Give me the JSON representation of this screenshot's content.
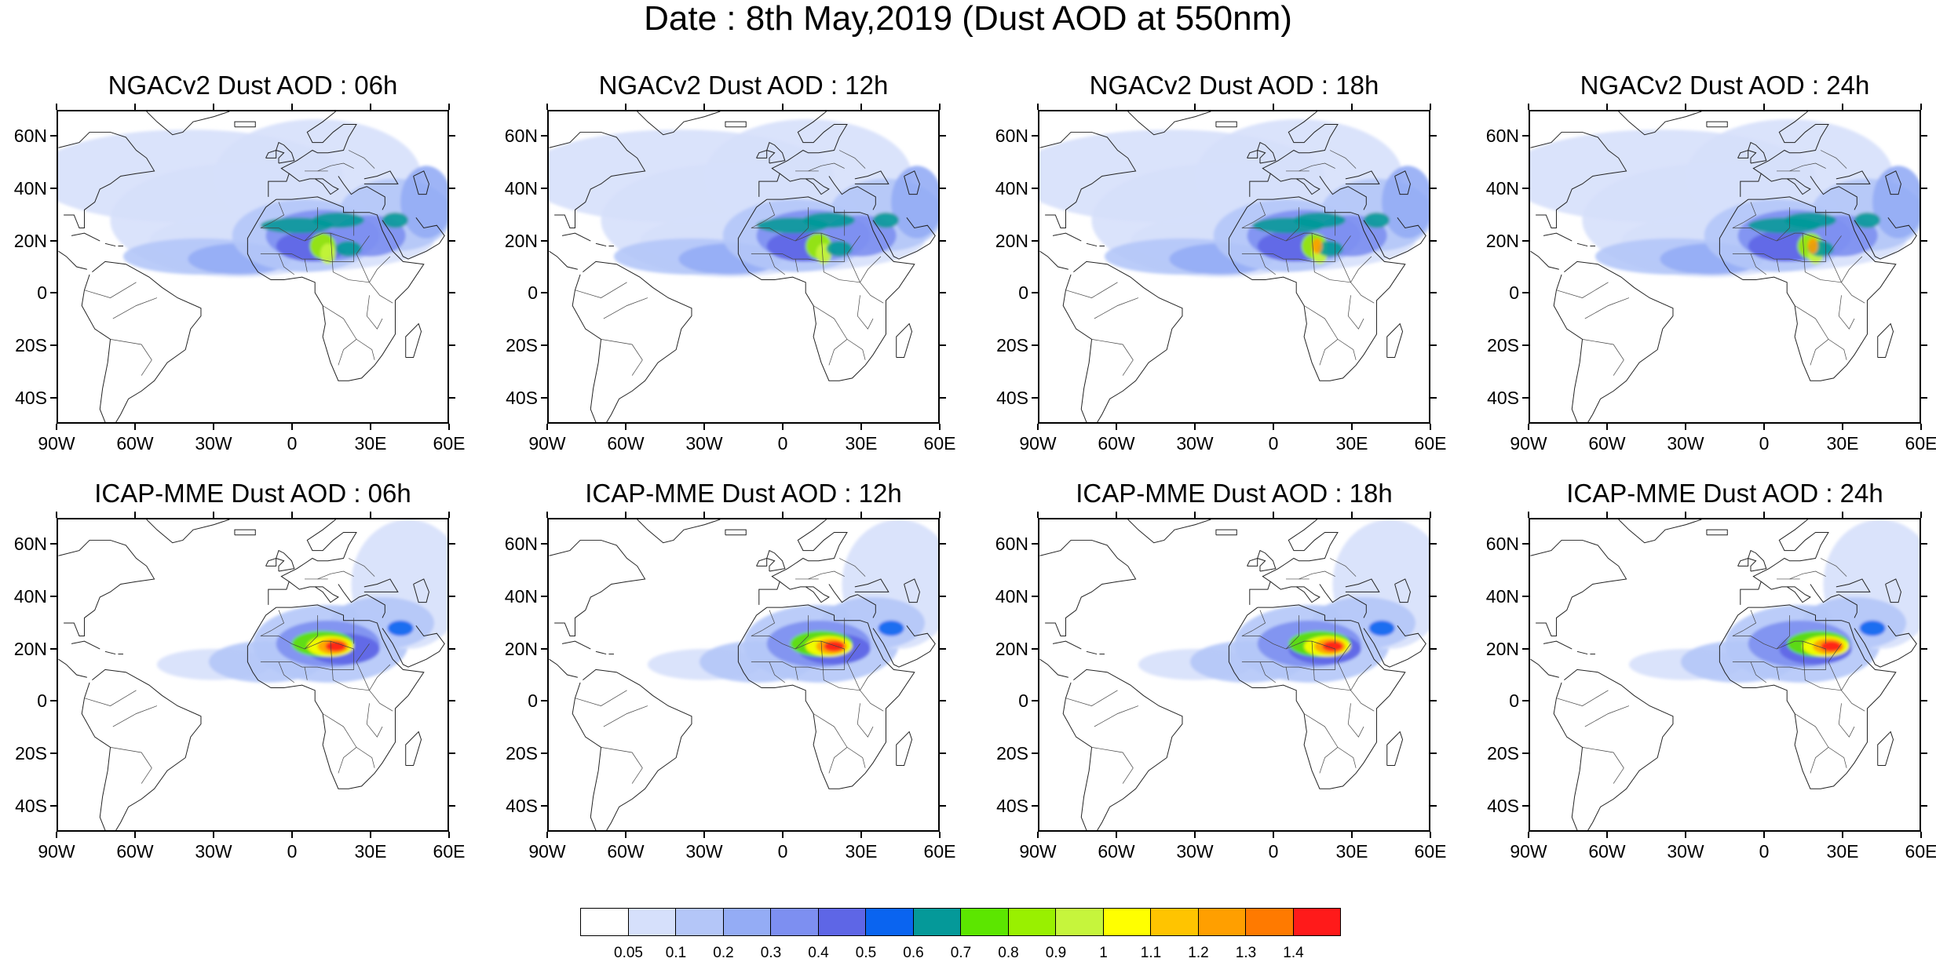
{
  "title": "Date : 8th May,2019 (Dust AOD at 550nm)",
  "panels": [
    {
      "title": "NGACv2 Dust AOD : 06h",
      "model": "NGACv2",
      "hour": 6
    },
    {
      "title": "NGACv2 Dust AOD : 12h",
      "model": "NGACv2",
      "hour": 12
    },
    {
      "title": "NGACv2 Dust AOD : 18h",
      "model": "NGACv2",
      "hour": 18
    },
    {
      "title": "NGACv2 Dust AOD : 24h",
      "model": "NGACv2",
      "hour": 24
    },
    {
      "title": "ICAP-MME Dust AOD : 06h",
      "model": "ICAP-MME",
      "hour": 6
    },
    {
      "title": "ICAP-MME Dust AOD : 12h",
      "model": "ICAP-MME",
      "hour": 12
    },
    {
      "title": "ICAP-MME Dust AOD : 18h",
      "model": "ICAP-MME",
      "hour": 18
    },
    {
      "title": "ICAP-MME Dust AOD : 24h",
      "model": "ICAP-MME",
      "hour": 24
    }
  ],
  "map": {
    "lon_range": [
      -90,
      60
    ],
    "lat_range": [
      -50,
      70
    ],
    "lat_labels": [
      "60N",
      "40N",
      "20N",
      "0",
      "20S",
      "40S"
    ],
    "lon_labels": [
      "90W",
      "60W",
      "30W",
      "0",
      "30E",
      "60E"
    ]
  },
  "colorbar": {
    "labels": [
      "0.05",
      "0.1",
      "0.2",
      "0.3",
      "0.4",
      "0.5",
      "0.6",
      "0.7",
      "0.8",
      "0.9",
      "1",
      "1.1",
      "1.2",
      "1.3",
      "1.4"
    ],
    "colors": [
      "#ffffff",
      "#d6e0fb",
      "#b4c6f8",
      "#94acf5",
      "#7d8ff1",
      "#5e66e6",
      "#0a64f0",
      "#059999",
      "#5ce600",
      "#99f000",
      "#c6f53c",
      "#ffff00",
      "#ffc400",
      "#ff9f00",
      "#ff7a00",
      "#ff1a1a"
    ]
  }
}
